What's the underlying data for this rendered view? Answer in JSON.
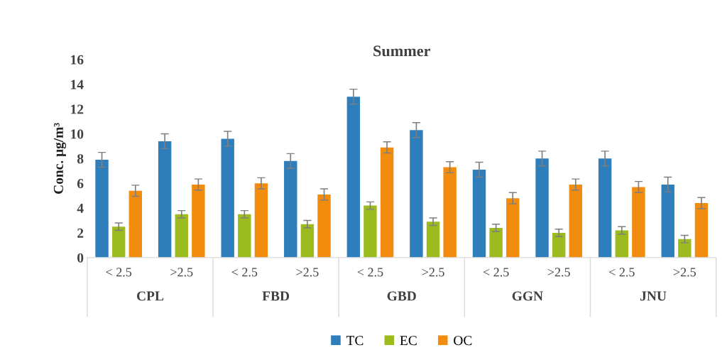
{
  "chart_data": {
    "type": "bar",
    "title": "Summer",
    "ylabel": "Conc. μg/m³",
    "categories": [
      "< 2.5",
      ">2.5",
      "< 2.5",
      ">2.5",
      "< 2.5",
      ">2.5",
      "< 2.5",
      ">2.5",
      "< 2.5",
      ">2.5"
    ],
    "annotations": [
      "CPL",
      "FBD",
      "GBD",
      "GGN",
      "JNU"
    ],
    "series": [
      {
        "name": "TC",
        "color": "#2e7ebc",
        "values": [
          7.9,
          9.4,
          9.6,
          7.8,
          13.0,
          10.3,
          7.1,
          8.0,
          8.0,
          5.9
        ],
        "errors": [
          0.6,
          0.6,
          0.6,
          0.6,
          0.6,
          0.6,
          0.6,
          0.6,
          0.6,
          0.6
        ]
      },
      {
        "name": "EC",
        "color": "#9bbb1f",
        "values": [
          2.5,
          3.5,
          3.5,
          2.7,
          4.2,
          2.9,
          2.4,
          2.0,
          2.2,
          1.5
        ],
        "errors": [
          0.3,
          0.3,
          0.3,
          0.3,
          0.3,
          0.3,
          0.3,
          0.3,
          0.3,
          0.3
        ]
      },
      {
        "name": "OC",
        "color": "#f28c0f",
        "values": [
          5.4,
          5.9,
          6.0,
          5.1,
          8.9,
          7.3,
          4.8,
          5.9,
          5.7,
          4.4
        ],
        "errors": [
          0.45,
          0.45,
          0.45,
          0.45,
          0.45,
          0.45,
          0.45,
          0.45,
          0.45,
          0.45
        ]
      }
    ],
    "ylim": [
      0,
      16
    ],
    "yticks": [
      0,
      2,
      4,
      6,
      8,
      10,
      12,
      14,
      16
    ],
    "grid": false,
    "legend": "bottom"
  }
}
